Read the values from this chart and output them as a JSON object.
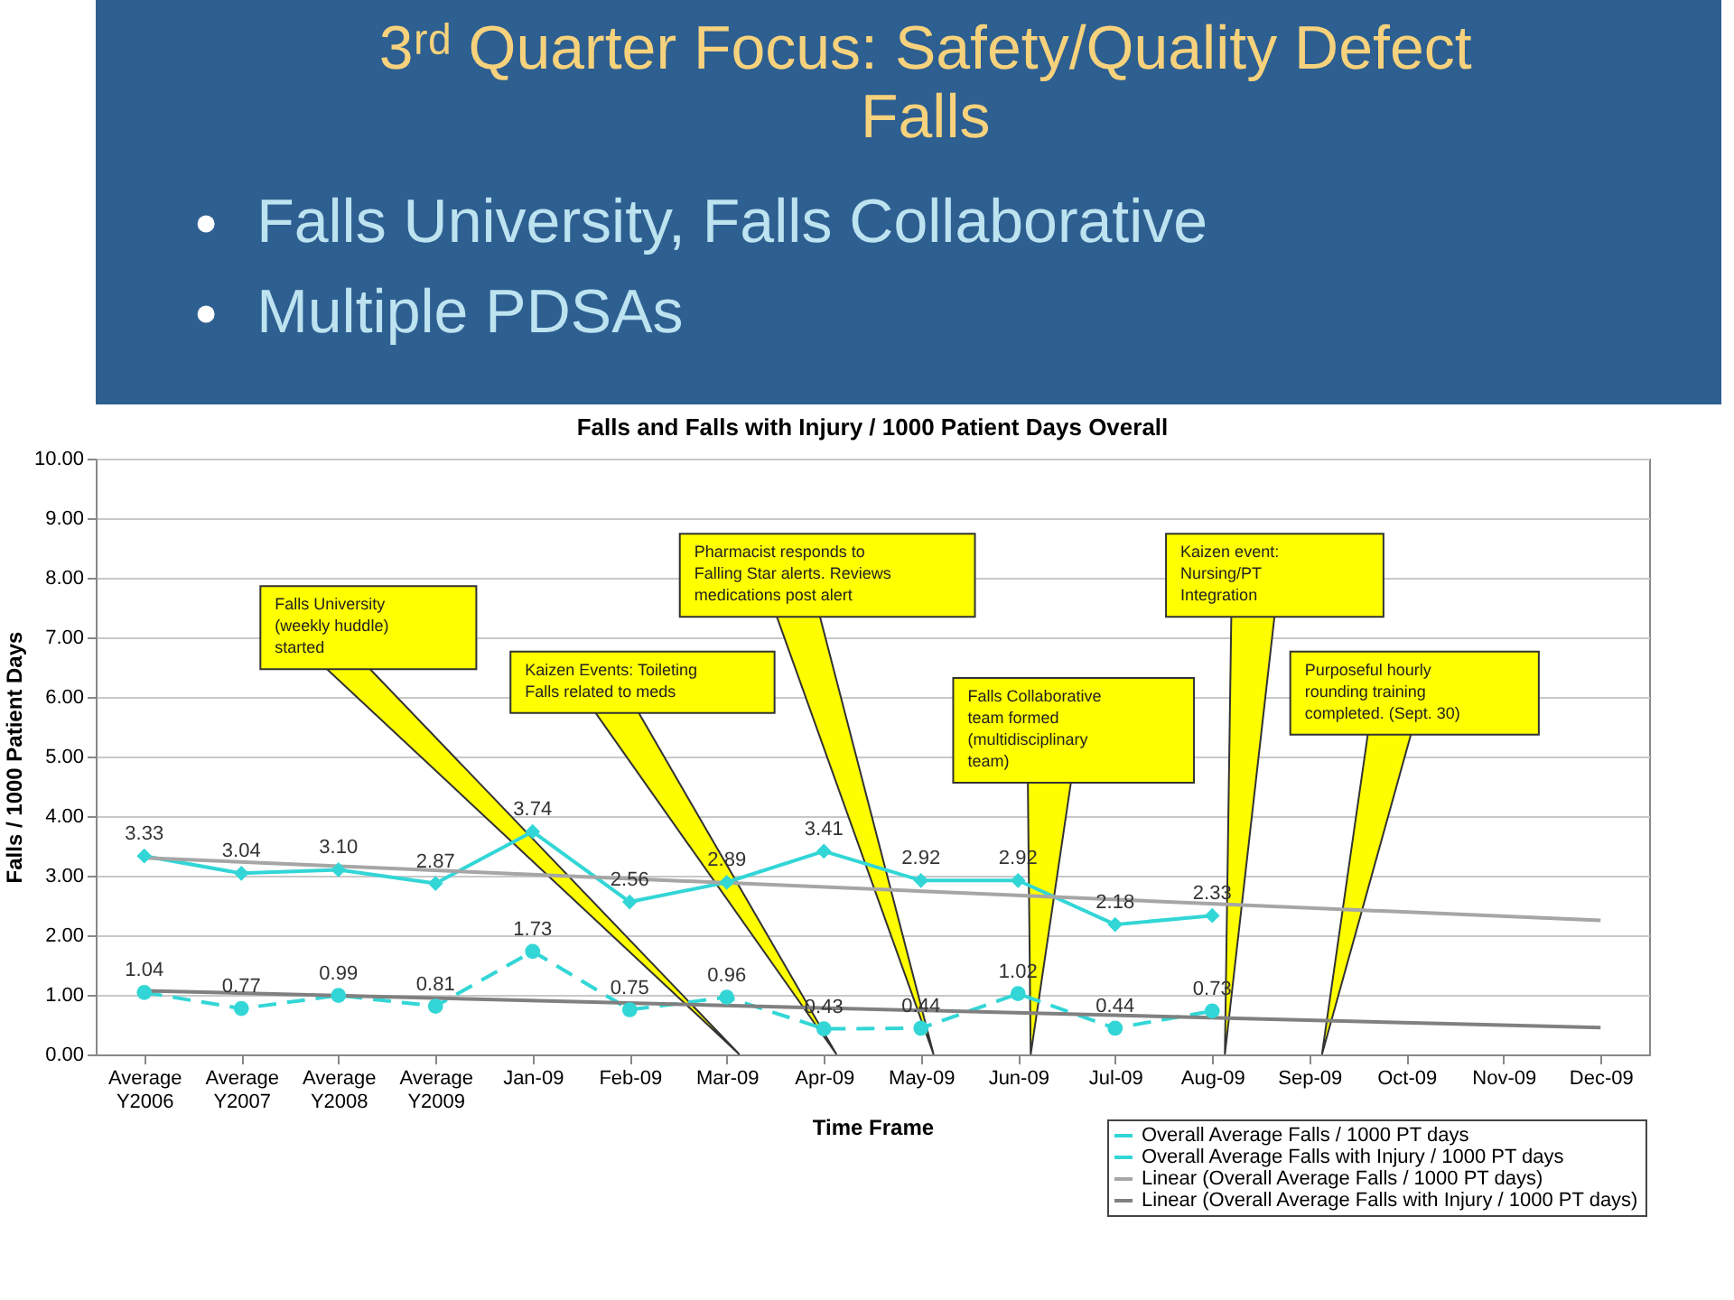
{
  "chart_data": {
    "type": "line",
    "title": "3ʳᵈ Quarter Focus: Safety/Quality Defect Falls",
    "subtitle": "Falls and Falls with Injury / 1000 Patient Days Overall",
    "xlabel": "Time Frame",
    "ylabel": "Falls / 1000 Patient Days",
    "categories": [
      "Average Y2006",
      "Average Y2007",
      "Average Y2008",
      "Average Y2009",
      "Jan-09",
      "Feb-09",
      "Mar-09",
      "Apr-09",
      "May-09",
      "Jun-09",
      "Jul-09",
      "Aug-09",
      "Sep-09",
      "Oct-09",
      "Nov-09",
      "Dec-09"
    ],
    "series": [
      {
        "name": "Overall Average Falls / 1000 PT days",
        "color": "#33d6d6",
        "marker": "diamond",
        "line_style": "solid",
        "values": [
          3.33,
          3.04,
          3.1,
          2.87,
          3.74,
          2.56,
          2.89,
          3.41,
          2.92,
          2.92,
          2.18,
          2.33,
          null,
          null,
          null,
          null
        ],
        "value_labels": [
          "3.33",
          "3.04",
          "3.10",
          "2.87",
          "3.74",
          "2.56",
          "2.89",
          "3.41",
          "2.92",
          "2.92",
          "2.18",
          "2.33",
          null,
          null,
          null,
          null
        ]
      },
      {
        "name": "Overall Average Falls with Injury / 1000 PT days",
        "color": "#33d6d6",
        "marker": "circle",
        "line_style": "dashed",
        "values": [
          1.04,
          0.77,
          0.99,
          0.81,
          1.73,
          0.75,
          0.96,
          0.43,
          0.44,
          1.02,
          0.44,
          0.73,
          null,
          null,
          null,
          null
        ],
        "value_labels": [
          "1.04",
          "0.77",
          "0.99",
          "0.81",
          "1.73",
          "0.75",
          "0.96",
          "0.43",
          "0.44",
          "1.02",
          "0.44",
          "0.73",
          null,
          null,
          null,
          null
        ]
      },
      {
        "name": "Linear (Overall Average Falls / 1000 PT days)",
        "color": "#a6a6a6",
        "marker": "none",
        "line_style": "solid",
        "x": [
          "Average Y2006",
          "Dec-09"
        ],
        "values": [
          3.3,
          2.25
        ]
      },
      {
        "name": "Linear (Overall Average Falls with Injury / 1000 PT days)",
        "color": "#808080",
        "marker": "none",
        "line_style": "solid",
        "x": [
          "Average Y2006",
          "Dec-09"
        ],
        "values": [
          1.07,
          0.45
        ]
      }
    ],
    "ylim": [
      0,
      10
    ],
    "yticks": [
      {
        "value": 0,
        "label": "0.00"
      },
      {
        "value": 1,
        "label": "1.00"
      },
      {
        "value": 2,
        "label": "2.00"
      },
      {
        "value": 3,
        "label": "3.00"
      },
      {
        "value": 4,
        "label": "4.00"
      },
      {
        "value": 5,
        "label": "5.00"
      },
      {
        "value": 6,
        "label": "6.00"
      },
      {
        "value": 7,
        "label": "7.00"
      },
      {
        "value": 8,
        "label": "8.00"
      },
      {
        "value": 9,
        "label": "9.00"
      },
      {
        "value": 10,
        "label": "10.00"
      }
    ],
    "grid": "y",
    "legend": "bottom right",
    "annotations": [
      "Falls University, Falls Collaborative",
      "Multiple PDSAs",
      "Falls University (weekly huddle) started",
      "Kaizen Events: Toileting Falls related to meds",
      "Pharmacist responds to Falling Star alerts. Reviews medications post alert",
      "Falls Collaborative team formed (multidisciplinary team)",
      "Kaizen event: Nursing/PT Integration",
      "Purposeful hourly rounding training completed. (Sept. 30)"
    ]
  }
}
